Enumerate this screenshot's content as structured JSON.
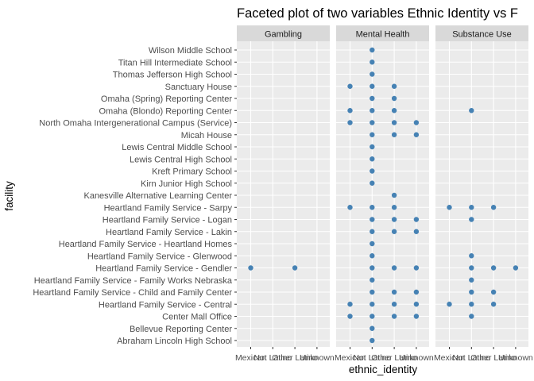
{
  "chart_data": {
    "type": "scatter",
    "title": "Faceted plot of two variables Ethnic Identity vs F",
    "xlabel": "ethnic_identity",
    "ylabel": "facility",
    "point_color": "#4682b4",
    "panel_bg": "#ebebeb",
    "strip_bg": "#d9d9d9",
    "x_categories": [
      "Mexican",
      "Not Latino",
      "Other Latino",
      "Unknown"
    ],
    "y_categories": [
      "Abraham Lincoln High School",
      "Bellevue Reporting Center",
      "Center Mall Office",
      "Heartland Family Service - Central",
      "Heartland Family Service - Child and Family Center",
      "Heartland Family Service - Family Works Nebraska",
      "Heartland Family Service - Gendler",
      "Heartland Family Service - Glenwood",
      "Heartland Family Service - Heartland Homes",
      "Heartland Family Service - Lakin",
      "Heartland Family Service - Logan",
      "Heartland Family Service - Sarpy",
      "Kanesville Alternative Learning Center",
      "Kirn Junior High  School",
      "Kreft Primary School",
      "Lewis Central High School",
      "Lewis Central Middle School",
      "Micah House",
      "North Omaha Intergenerational Campus (Service)",
      "Omaha (Blondo) Reporting Center",
      "Omaha (Spring) Reporting Center",
      "Sanctuary House",
      "Thomas Jefferson High School",
      "Titan Hill Intermediate School",
      "Wilson Middle School"
    ],
    "facets": [
      {
        "name": "Gambling",
        "points": [
          {
            "x": "Mexican",
            "y": "Heartland Family Service - Gendler"
          },
          {
            "x": "Other Latino",
            "y": "Heartland Family Service - Gendler"
          }
        ]
      },
      {
        "name": "Mental Health",
        "points": [
          {
            "x": "Not Latino",
            "y": "Wilson Middle School"
          },
          {
            "x": "Not Latino",
            "y": "Titan Hill Intermediate School"
          },
          {
            "x": "Not Latino",
            "y": "Thomas Jefferson High School"
          },
          {
            "x": "Mexican",
            "y": "Sanctuary House"
          },
          {
            "x": "Not Latino",
            "y": "Sanctuary House"
          },
          {
            "x": "Other Latino",
            "y": "Sanctuary House"
          },
          {
            "x": "Not Latino",
            "y": "Omaha (Spring) Reporting Center"
          },
          {
            "x": "Other Latino",
            "y": "Omaha (Spring) Reporting Center"
          },
          {
            "x": "Mexican",
            "y": "Omaha (Blondo) Reporting Center"
          },
          {
            "x": "Not Latino",
            "y": "Omaha (Blondo) Reporting Center"
          },
          {
            "x": "Other Latino",
            "y": "Omaha (Blondo) Reporting Center"
          },
          {
            "x": "Mexican",
            "y": "North Omaha Intergenerational Campus (Service)"
          },
          {
            "x": "Not Latino",
            "y": "North Omaha Intergenerational Campus (Service)"
          },
          {
            "x": "Other Latino",
            "y": "North Omaha Intergenerational Campus (Service)"
          },
          {
            "x": "Unknown",
            "y": "North Omaha Intergenerational Campus (Service)"
          },
          {
            "x": "Not Latino",
            "y": "Micah House"
          },
          {
            "x": "Other Latino",
            "y": "Micah House"
          },
          {
            "x": "Unknown",
            "y": "Micah House"
          },
          {
            "x": "Not Latino",
            "y": "Lewis Central Middle School"
          },
          {
            "x": "Not Latino",
            "y": "Lewis Central High School"
          },
          {
            "x": "Not Latino",
            "y": "Kreft Primary School"
          },
          {
            "x": "Not Latino",
            "y": "Kirn Junior High  School"
          },
          {
            "x": "Other Latino",
            "y": "Kanesville Alternative Learning Center"
          },
          {
            "x": "Mexican",
            "y": "Heartland Family Service - Sarpy"
          },
          {
            "x": "Not Latino",
            "y": "Heartland Family Service - Sarpy"
          },
          {
            "x": "Other Latino",
            "y": "Heartland Family Service - Sarpy"
          },
          {
            "x": "Not Latino",
            "y": "Heartland Family Service - Logan"
          },
          {
            "x": "Other Latino",
            "y": "Heartland Family Service - Logan"
          },
          {
            "x": "Unknown",
            "y": "Heartland Family Service - Logan"
          },
          {
            "x": "Not Latino",
            "y": "Heartland Family Service - Lakin"
          },
          {
            "x": "Other Latino",
            "y": "Heartland Family Service - Lakin"
          },
          {
            "x": "Unknown",
            "y": "Heartland Family Service - Lakin"
          },
          {
            "x": "Not Latino",
            "y": "Heartland Family Service - Heartland Homes"
          },
          {
            "x": "Not Latino",
            "y": "Heartland Family Service - Glenwood"
          },
          {
            "x": "Not Latino",
            "y": "Heartland Family Service - Gendler"
          },
          {
            "x": "Other Latino",
            "y": "Heartland Family Service - Gendler"
          },
          {
            "x": "Unknown",
            "y": "Heartland Family Service - Gendler"
          },
          {
            "x": "Not Latino",
            "y": "Heartland Family Service - Family Works Nebraska"
          },
          {
            "x": "Not Latino",
            "y": "Heartland Family Service - Child and Family Center"
          },
          {
            "x": "Other Latino",
            "y": "Heartland Family Service - Child and Family Center"
          },
          {
            "x": "Unknown",
            "y": "Heartland Family Service - Child and Family Center"
          },
          {
            "x": "Mexican",
            "y": "Heartland Family Service - Central"
          },
          {
            "x": "Not Latino",
            "y": "Heartland Family Service - Central"
          },
          {
            "x": "Other Latino",
            "y": "Heartland Family Service - Central"
          },
          {
            "x": "Unknown",
            "y": "Heartland Family Service - Central"
          },
          {
            "x": "Mexican",
            "y": "Center Mall Office"
          },
          {
            "x": "Not Latino",
            "y": "Center Mall Office"
          },
          {
            "x": "Other Latino",
            "y": "Center Mall Office"
          },
          {
            "x": "Unknown",
            "y": "Center Mall Office"
          },
          {
            "x": "Not Latino",
            "y": "Bellevue Reporting Center"
          },
          {
            "x": "Not Latino",
            "y": "Abraham Lincoln High School"
          }
        ]
      },
      {
        "name": "Substance Use",
        "points": [
          {
            "x": "Not Latino",
            "y": "Omaha (Blondo) Reporting Center"
          },
          {
            "x": "Mexican",
            "y": "Heartland Family Service - Sarpy"
          },
          {
            "x": "Not Latino",
            "y": "Heartland Family Service - Sarpy"
          },
          {
            "x": "Other Latino",
            "y": "Heartland Family Service - Sarpy"
          },
          {
            "x": "Not Latino",
            "y": "Heartland Family Service - Logan"
          },
          {
            "x": "Not Latino",
            "y": "Heartland Family Service - Glenwood"
          },
          {
            "x": "Not Latino",
            "y": "Heartland Family Service - Gendler"
          },
          {
            "x": "Other Latino",
            "y": "Heartland Family Service - Gendler"
          },
          {
            "x": "Unknown",
            "y": "Heartland Family Service - Gendler"
          },
          {
            "x": "Not Latino",
            "y": "Heartland Family Service - Family Works Nebraska"
          },
          {
            "x": "Not Latino",
            "y": "Heartland Family Service - Child and Family Center"
          },
          {
            "x": "Other Latino",
            "y": "Heartland Family Service - Child and Family Center"
          },
          {
            "x": "Mexican",
            "y": "Heartland Family Service - Central"
          },
          {
            "x": "Not Latino",
            "y": "Heartland Family Service - Central"
          },
          {
            "x": "Other Latino",
            "y": "Heartland Family Service - Central"
          },
          {
            "x": "Not Latino",
            "y": "Center Mall Office"
          }
        ]
      }
    ]
  }
}
